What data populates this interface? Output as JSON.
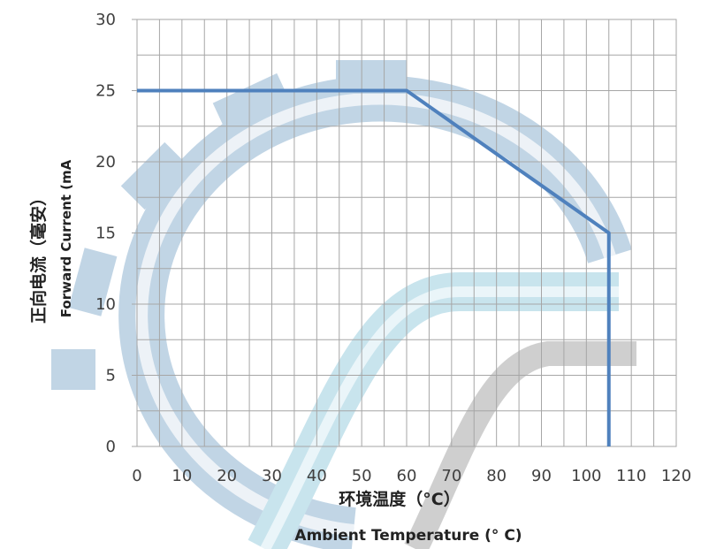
{
  "chart_data": {
    "type": "line",
    "xlabel_cn": "环境温度（°C）",
    "xlabel_en": "Ambient Temperature (° C)",
    "ylabel_cn": "正向电流（毫安）",
    "ylabel_en": "Forward Current (mA",
    "xlim": [
      0,
      120
    ],
    "ylim": [
      0,
      30
    ],
    "x_ticks": [
      0,
      10,
      20,
      30,
      40,
      50,
      60,
      70,
      80,
      90,
      100,
      110,
      120
    ],
    "y_ticks": [
      0,
      5,
      10,
      15,
      20,
      25,
      30
    ],
    "grid": true,
    "series": [
      {
        "x": [
          0,
          60,
          105,
          105
        ],
        "y": [
          25,
          25,
          15,
          0
        ],
        "color": "#4f81bd"
      }
    ]
  }
}
